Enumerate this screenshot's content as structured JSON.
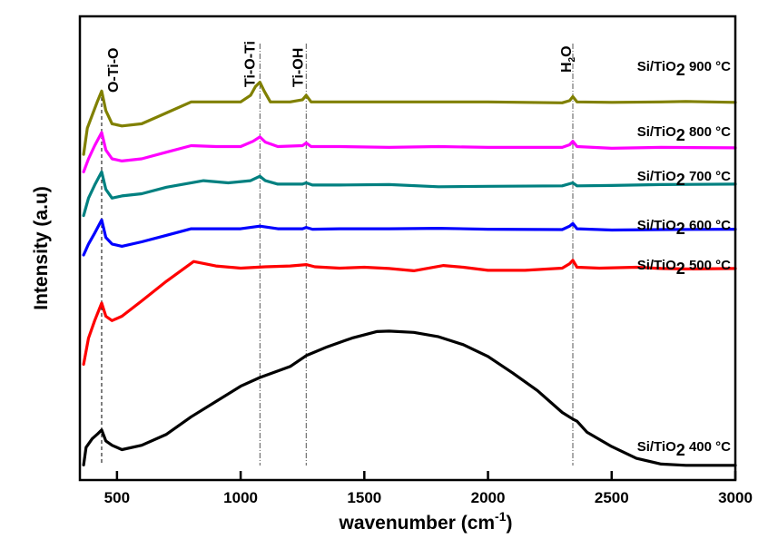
{
  "chart_data": {
    "type": "line",
    "title": "",
    "xlabel": "wavenumber (cm",
    "xlabel_sup": "-1",
    "xlabel_close": ")",
    "ylabel": "Intensity (a.u)",
    "xlim": [
      350,
      3000
    ],
    "ylim": [
      0,
      100
    ],
    "x_ticks": [
      500,
      1000,
      1500,
      2000,
      2500,
      3000
    ],
    "x_tick_labels": [
      "500",
      "1000",
      "1500",
      "2000",
      "2500",
      "3000"
    ],
    "y_ticks_shown": false,
    "grid": false,
    "legend": "inline-right",
    "reference_lines": [
      {
        "x": 438,
        "label": "O-Ti-O",
        "style": "dashed"
      },
      {
        "x": 1078,
        "label": "Ti-O-Ti",
        "style": "dashdot"
      },
      {
        "x": 1265,
        "label": "Ti-OH",
        "style": "dashdot"
      },
      {
        "x": 2343,
        "label": "H2O",
        "label_main": "H",
        "label_sub": "2",
        "label_tail": "O",
        "style": "dashdot"
      }
    ],
    "series": [
      {
        "name": "Si/TiO2 900 °C",
        "label_prefix": "Si/TiO",
        "label_sub": "2",
        "label_suffix": " 900 °C",
        "color": "#808000",
        "points": [
          [
            365,
            73
          ],
          [
            380,
            79
          ],
          [
            400,
            82
          ],
          [
            420,
            85
          ],
          [
            438,
            87.5
          ],
          [
            455,
            83
          ],
          [
            480,
            80
          ],
          [
            520,
            79.5
          ],
          [
            600,
            80
          ],
          [
            700,
            82.5
          ],
          [
            800,
            85
          ],
          [
            900,
            85
          ],
          [
            1000,
            85
          ],
          [
            1040,
            86.5
          ],
          [
            1060,
            88.5
          ],
          [
            1078,
            89.5
          ],
          [
            1095,
            87.5
          ],
          [
            1120,
            85
          ],
          [
            1200,
            85
          ],
          [
            1250,
            85.5
          ],
          [
            1265,
            86.5
          ],
          [
            1285,
            85
          ],
          [
            1400,
            85
          ],
          [
            1600,
            85
          ],
          [
            1800,
            85
          ],
          [
            2000,
            85
          ],
          [
            2300,
            84.8
          ],
          [
            2330,
            85.3
          ],
          [
            2343,
            86.2
          ],
          [
            2360,
            85
          ],
          [
            2500,
            84.9
          ],
          [
            2700,
            85
          ],
          [
            2800,
            85.1
          ],
          [
            3000,
            84.9
          ]
        ]
      },
      {
        "name": "Si/TiO2 800 °C",
        "label_prefix": "Si/TiO",
        "label_sub": "2",
        "label_suffix": " 800 °C",
        "color": "#ff00ff",
        "points": [
          [
            365,
            69
          ],
          [
            385,
            72
          ],
          [
            410,
            75
          ],
          [
            438,
            78
          ],
          [
            455,
            74
          ],
          [
            480,
            72
          ],
          [
            520,
            71.5
          ],
          [
            600,
            72
          ],
          [
            700,
            73.5
          ],
          [
            800,
            75
          ],
          [
            900,
            74.8
          ],
          [
            1000,
            74.8
          ],
          [
            1050,
            76
          ],
          [
            1078,
            77
          ],
          [
            1100,
            75.8
          ],
          [
            1150,
            74.8
          ],
          [
            1250,
            75
          ],
          [
            1265,
            75.6
          ],
          [
            1285,
            74.8
          ],
          [
            1400,
            74.8
          ],
          [
            1600,
            74.6
          ],
          [
            1800,
            74.8
          ],
          [
            2000,
            74.6
          ],
          [
            2300,
            74.6
          ],
          [
            2330,
            75.2
          ],
          [
            2343,
            76
          ],
          [
            2360,
            74.8
          ],
          [
            2500,
            74.4
          ],
          [
            2700,
            74.6
          ],
          [
            3000,
            74.5
          ]
        ]
      },
      {
        "name": "Si/TiO2 700 °C",
        "label_prefix": "Si/TiO",
        "label_sub": "2",
        "label_suffix": " 700 °C",
        "color": "#008080",
        "points": [
          [
            365,
            59
          ],
          [
            385,
            63
          ],
          [
            410,
            66
          ],
          [
            438,
            69
          ],
          [
            455,
            65
          ],
          [
            480,
            63
          ],
          [
            520,
            63.5
          ],
          [
            600,
            64
          ],
          [
            700,
            65.5
          ],
          [
            850,
            67
          ],
          [
            950,
            66.5
          ],
          [
            1040,
            67
          ],
          [
            1078,
            68
          ],
          [
            1100,
            67
          ],
          [
            1150,
            66.2
          ],
          [
            1250,
            66.2
          ],
          [
            1265,
            66.5
          ],
          [
            1290,
            66
          ],
          [
            1400,
            66
          ],
          [
            1600,
            66.1
          ],
          [
            1800,
            65.6
          ],
          [
            2000,
            65.7
          ],
          [
            2300,
            65.8
          ],
          [
            2343,
            66.5
          ],
          [
            2360,
            65.8
          ],
          [
            2500,
            65.9
          ],
          [
            2700,
            66.1
          ],
          [
            3000,
            66.2
          ]
        ]
      },
      {
        "name": "Si/TiO2 600 °C",
        "label_prefix": "Si/TiO",
        "label_sub": "2",
        "label_suffix": " 600 °C",
        "color": "#0000ff",
        "points": [
          [
            365,
            50
          ],
          [
            385,
            52.5
          ],
          [
            410,
            55
          ],
          [
            438,
            58
          ],
          [
            455,
            54
          ],
          [
            480,
            52.5
          ],
          [
            520,
            52
          ],
          [
            600,
            53
          ],
          [
            700,
            54.5
          ],
          [
            800,
            56
          ],
          [
            900,
            56
          ],
          [
            1000,
            56
          ],
          [
            1078,
            56.6
          ],
          [
            1150,
            56
          ],
          [
            1250,
            56
          ],
          [
            1265,
            56.3
          ],
          [
            1290,
            55.9
          ],
          [
            1400,
            56
          ],
          [
            1600,
            56
          ],
          [
            1800,
            56.1
          ],
          [
            2000,
            55.9
          ],
          [
            2300,
            55.8
          ],
          [
            2330,
            56.6
          ],
          [
            2343,
            57.2
          ],
          [
            2360,
            56
          ],
          [
            2500,
            55.7
          ],
          [
            2700,
            55.8
          ],
          [
            3000,
            55.9
          ]
        ]
      },
      {
        "name": "Si/TiO2 500 °C",
        "label_prefix": "Si/TiO",
        "label_sub": "2",
        "label_suffix": " 500 °C",
        "color": "#ff0000",
        "points": [
          [
            365,
            25
          ],
          [
            385,
            31
          ],
          [
            410,
            35
          ],
          [
            438,
            39
          ],
          [
            455,
            36
          ],
          [
            480,
            35
          ],
          [
            520,
            36
          ],
          [
            600,
            39.5
          ],
          [
            700,
            44
          ],
          [
            810,
            48.5
          ],
          [
            900,
            47.5
          ],
          [
            1000,
            47
          ],
          [
            1100,
            47.3
          ],
          [
            1200,
            47.5
          ],
          [
            1265,
            47.8
          ],
          [
            1300,
            47.3
          ],
          [
            1400,
            47
          ],
          [
            1500,
            47.2
          ],
          [
            1600,
            46.9
          ],
          [
            1700,
            46.4
          ],
          [
            1820,
            47.6
          ],
          [
            1900,
            47.2
          ],
          [
            2000,
            46.5
          ],
          [
            2150,
            46.5
          ],
          [
            2300,
            47
          ],
          [
            2330,
            48
          ],
          [
            2343,
            48.8
          ],
          [
            2360,
            47.2
          ],
          [
            2450,
            47
          ],
          [
            2600,
            47.2
          ],
          [
            2700,
            46.9
          ],
          [
            2800,
            46.8
          ],
          [
            3000,
            46.9
          ]
        ]
      },
      {
        "name": "Si/TiO2 400 °C",
        "label_prefix": "Si/TiO",
        "label_sub": "2",
        "label_suffix": " 400 °C",
        "color": "#000000",
        "points": [
          [
            365,
            2
          ],
          [
            375,
            6
          ],
          [
            400,
            8
          ],
          [
            420,
            9
          ],
          [
            438,
            10
          ],
          [
            455,
            7.5
          ],
          [
            480,
            6.5
          ],
          [
            520,
            5.5
          ],
          [
            600,
            6.5
          ],
          [
            700,
            9
          ],
          [
            800,
            13
          ],
          [
            900,
            16.5
          ],
          [
            1000,
            20
          ],
          [
            1078,
            22
          ],
          [
            1200,
            24.5
          ],
          [
            1265,
            27
          ],
          [
            1350,
            29
          ],
          [
            1450,
            31
          ],
          [
            1550,
            32.5
          ],
          [
            1600,
            32.6
          ],
          [
            1700,
            32.3
          ],
          [
            1800,
            31.3
          ],
          [
            1900,
            29.5
          ],
          [
            2000,
            26.8
          ],
          [
            2100,
            23
          ],
          [
            2200,
            19
          ],
          [
            2300,
            14
          ],
          [
            2343,
            12.5
          ],
          [
            2360,
            12
          ],
          [
            2400,
            9.5
          ],
          [
            2500,
            6.2
          ],
          [
            2600,
            3.5
          ],
          [
            2700,
            2.2
          ],
          [
            2800,
            1.9
          ],
          [
            3000,
            1.9
          ]
        ]
      }
    ]
  }
}
